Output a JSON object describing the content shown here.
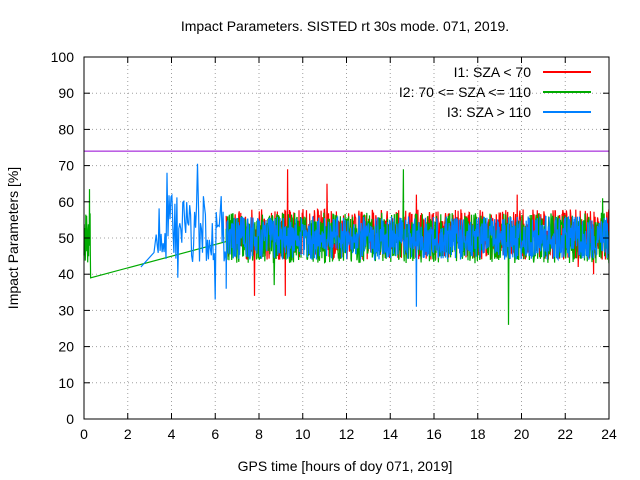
{
  "chart_data": {
    "type": "line",
    "title": "Impact Parameters. SISTED rt 30s mode. 071, 2019.",
    "xlabel": "GPS time [hours of doy 071, 2019]",
    "ylabel": "Impact Parameters [%]",
    "xlim": [
      0,
      24
    ],
    "ylim": [
      0,
      100
    ],
    "xticks": [
      "0",
      "2",
      "4",
      "6",
      "8",
      "10",
      "12",
      "14",
      "16",
      "18",
      "20",
      "22",
      "24"
    ],
    "yticks": [
      "0",
      "10",
      "20",
      "30",
      "40",
      "50",
      "60",
      "70",
      "80",
      "90",
      "100"
    ],
    "grid": true,
    "legend_position": "top-right",
    "reference_line": {
      "value": 74,
      "color": "#9400d3"
    },
    "series": [
      {
        "name": "I1: SZA < 70",
        "color": "#ff0000",
        "t_range": [
          6.5,
          24.0
        ],
        "center": 51,
        "spread": 7,
        "spikes": [
          [
            9.3,
            69
          ],
          [
            9.2,
            34
          ],
          [
            7.8,
            34
          ],
          [
            11.1,
            65
          ],
          [
            23.3,
            40
          ],
          [
            22.6,
            42
          ],
          [
            15.2,
            62
          ],
          [
            19.8,
            62
          ]
        ]
      },
      {
        "name": "I2: 70 <= SZA <= 110",
        "color": "#00aa00",
        "t_range": [
          0.0,
          24.0
        ],
        "center": 50,
        "spread": 7,
        "ramp": [
          [
            0.3,
            42
          ],
          [
            6.5,
            49
          ]
        ],
        "spikes": [
          [
            0.25,
            63.5
          ],
          [
            0.3,
            39
          ],
          [
            19.4,
            26
          ],
          [
            14.6,
            69
          ],
          [
            8.7,
            37
          ],
          [
            23.7,
            61
          ]
        ]
      },
      {
        "name": "I3: SZA > 110",
        "color": "#0080ff",
        "t_range": [
          2.6,
          24.0
        ],
        "center": 50,
        "spread": 6,
        "spikes": [
          [
            3.8,
            68
          ],
          [
            5.2,
            70.5
          ],
          [
            6.0,
            33
          ],
          [
            15.2,
            31
          ],
          [
            4.3,
            39
          ],
          [
            6.5,
            36
          ]
        ]
      }
    ]
  }
}
